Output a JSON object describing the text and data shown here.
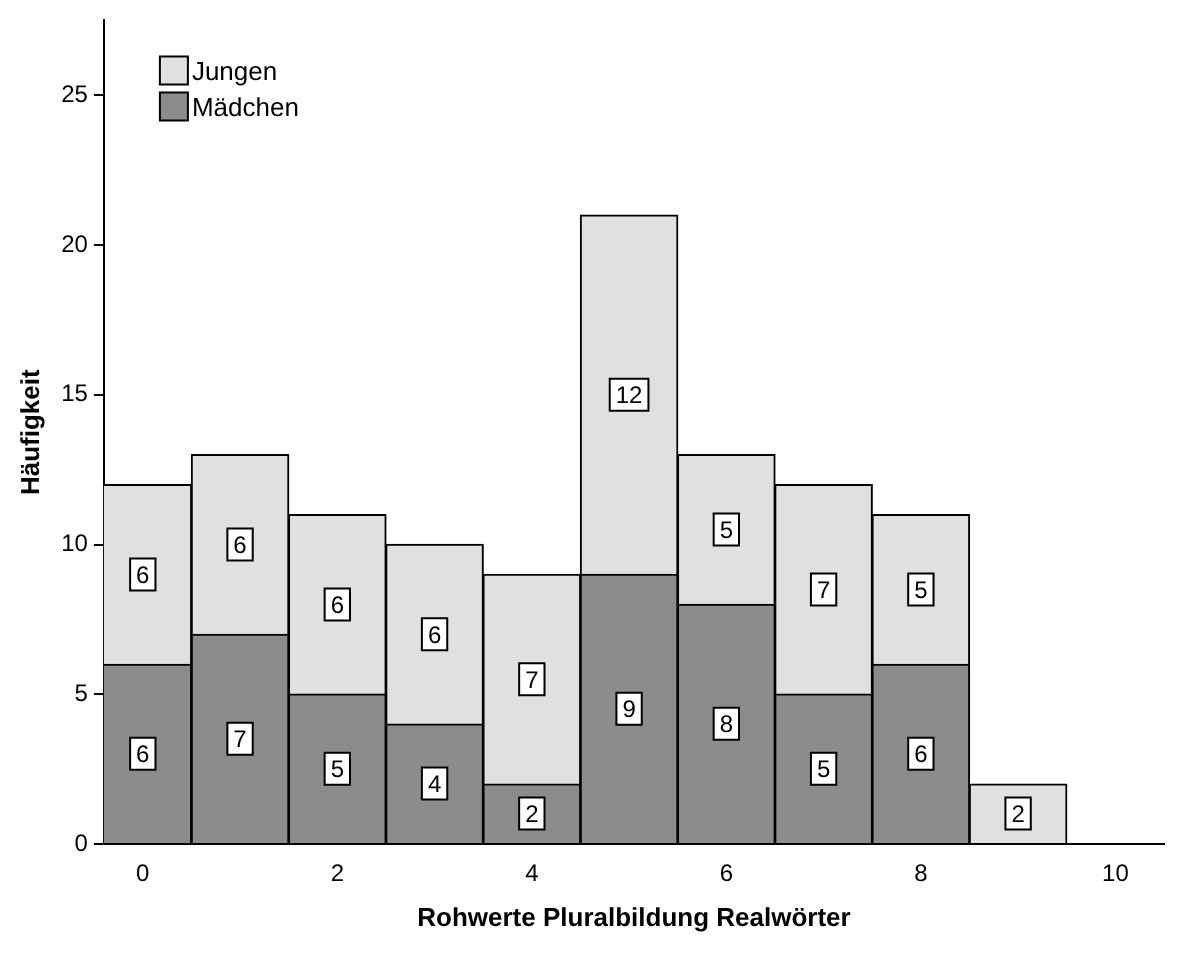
{
  "chart_data": {
    "type": "bar",
    "stacked": true,
    "xlabel": "Rohwerte Pluralbildung Realwörter",
    "ylabel": "Häufigkeit",
    "x": [
      0,
      1,
      2,
      3,
      4,
      5,
      6,
      7,
      8,
      9
    ],
    "series": [
      {
        "name": "Mädchen",
        "color": "#8c8c8c",
        "values": [
          6,
          7,
          5,
          4,
          2,
          9,
          8,
          5,
          6,
          null
        ]
      },
      {
        "name": "Jungen",
        "color": "#e0e0e0",
        "values": [
          6,
          6,
          6,
          6,
          7,
          12,
          5,
          7,
          5,
          2
        ]
      }
    ],
    "xlim": [
      -0.4,
      10.5
    ],
    "xticks": [
      0,
      2,
      4,
      6,
      8,
      10
    ],
    "ylim": [
      0,
      27.5
    ],
    "yticks": [
      0,
      5,
      10,
      15,
      20,
      25
    ],
    "grid": false,
    "legend": "top left",
    "data_labels": true
  }
}
